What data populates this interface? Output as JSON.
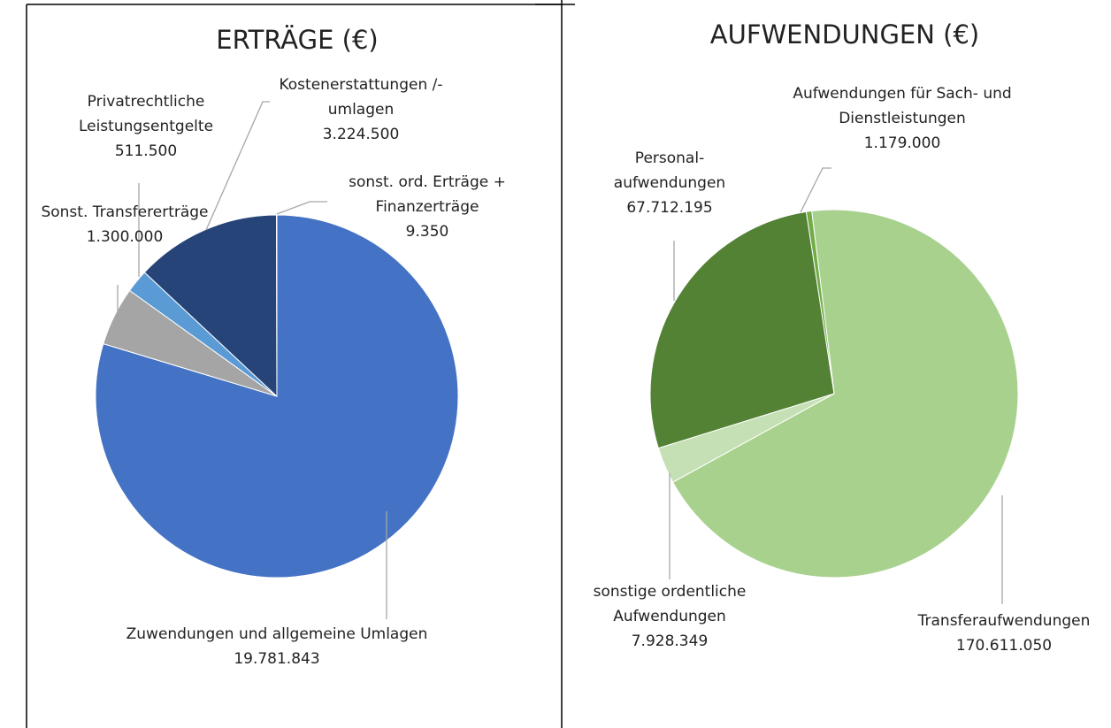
{
  "chart_data": [
    {
      "type": "pie",
      "title": "ERTRÄGE (€)",
      "categories": [
        "Zuwendungen und allgemeine Umlagen",
        "Sonst. Transfererträge",
        "Privatrechtliche Leistungsentgelte",
        "Kostenerstattungen /-umlagen",
        "sonst. ord. Erträge + Finanzerträge"
      ],
      "values": [
        19781843,
        1300000,
        511500,
        3224500,
        9350
      ],
      "value_labels": [
        "19.781.843",
        "1.300.000",
        "511.500",
        "3.224.500",
        "9.350"
      ],
      "colors": [
        "#4472c4",
        "#a5a5a5",
        "#5b9bd5",
        "#264478",
        "#ed7d31"
      ]
    },
    {
      "type": "pie",
      "title": "AUFWENDUNGEN (€)",
      "categories": [
        "Transferaufwendungen",
        "sonstige ordentliche Aufwendungen",
        "Personal-aufwendungen",
        "Aufwendungen für Sach- und Dienstleistungen"
      ],
      "values": [
        170611050,
        7928349,
        67712195,
        1179000
      ],
      "value_labels": [
        "170.611.050",
        "7.928.349",
        "67.712.195",
        "1.179.000"
      ],
      "colors": [
        "#a9d18e",
        "#c5e0b4",
        "#548235",
        "#70ad47"
      ]
    }
  ]
}
